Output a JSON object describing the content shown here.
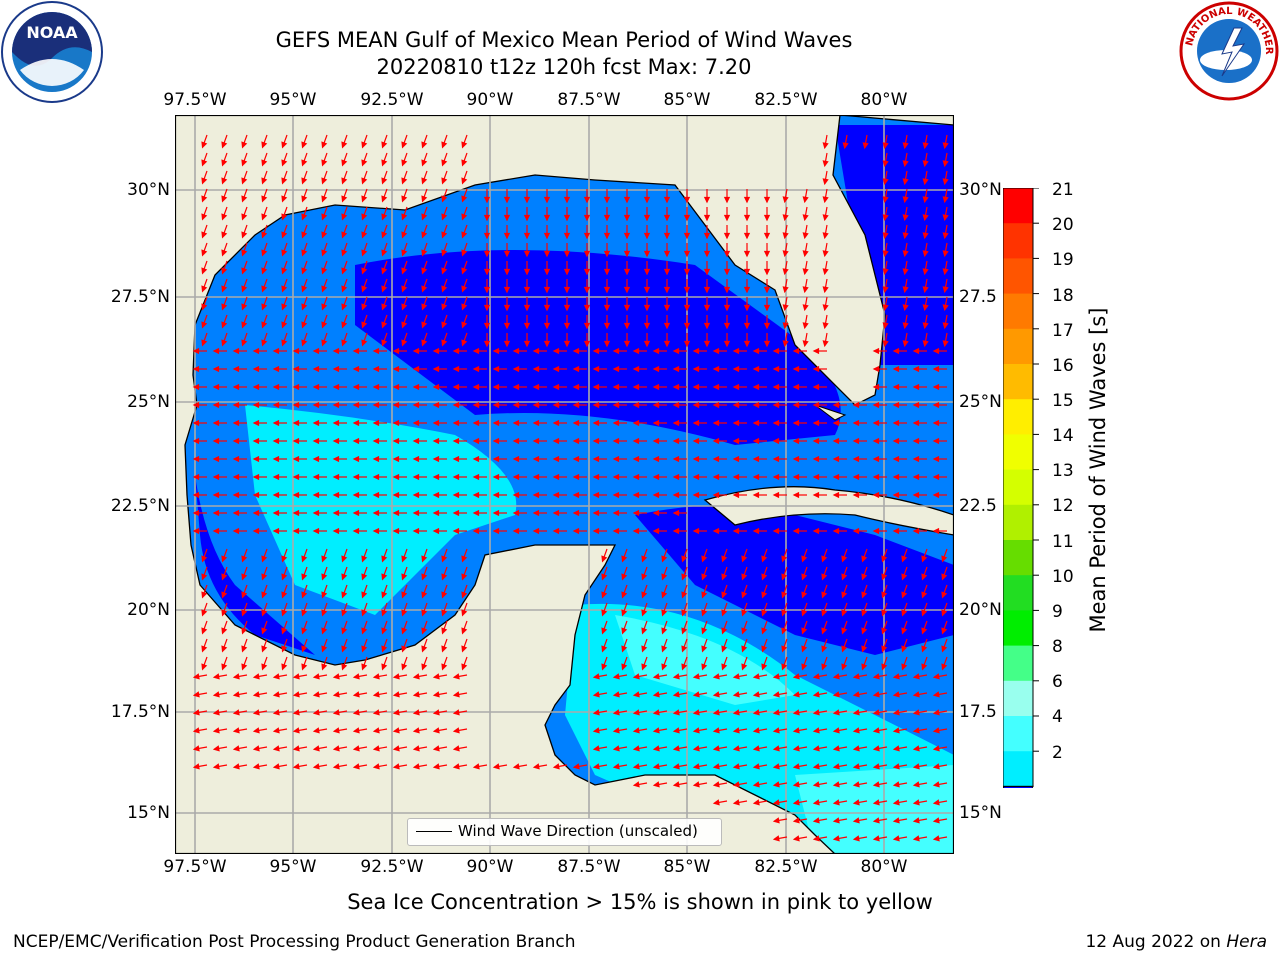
{
  "title_line1": "GEFS MEAN Gulf of Mexico Mean Period of Wind Waves",
  "title_line2": "20220810 t12z 120h fcst   Max: 7.20",
  "logos": {
    "left": "NOAA",
    "right_ring": "NATIONAL WEATHER SERVICE"
  },
  "lon_ticks": [
    "97.5°W",
    "95°W",
    "92.5°W",
    "90°W",
    "87.5°W",
    "85°W",
    "82.5°W",
    "80°W"
  ],
  "lat_ticks": [
    "30°N",
    "27.5°N",
    "25°N",
    "22.5°N",
    "20°N",
    "17.5°N",
    "15°N"
  ],
  "lat_ticks_right": [
    "30°N",
    "27.5",
    "25°N",
    "22.5",
    "20°N",
    "17.5",
    "15°N"
  ],
  "colorbar": {
    "title": "Mean Period of Wind Waves [s]",
    "labels": [
      "21",
      "20",
      "19",
      "18",
      "17",
      "16",
      "15",
      "14",
      "13",
      "12",
      "11",
      "10",
      "9",
      "8",
      "6",
      "4",
      "2"
    ],
    "colors": [
      "#ff0000",
      "#ff3300",
      "#ff5500",
      "#ff7a00",
      "#ff9900",
      "#ffbb00",
      "#ffee00",
      "#f0ff00",
      "#d4ff00",
      "#b0f000",
      "#66dd00",
      "#22dd22",
      "#00ee00",
      "#44ff88",
      "#99ffee",
      "#44ffff",
      "#00eeff",
      "#0080ff",
      "#0000ff"
    ]
  },
  "legend_label": "Wind Wave Direction (unscaled)",
  "footnote": "Sea Ice Concentration > 15% is shown in pink to yellow",
  "credit_left": "NCEP/EMC/Verification Post Processing Product Generation Branch",
  "credit_right_date": "12 Aug 2022 on ",
  "credit_right_host": "Hera",
  "colors": {
    "land": "#eeeedc",
    "water_dark": "#0000ff",
    "water_mid": "#0080ff",
    "water_light": "#00eeff",
    "water_pale": "#44ffff",
    "arrow": "#ff0000"
  }
}
